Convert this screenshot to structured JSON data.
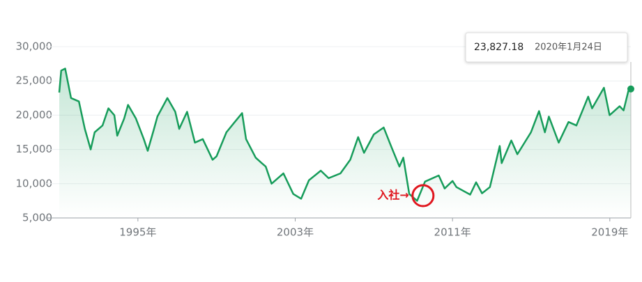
{
  "chart_data": {
    "type": "line",
    "x": [
      1991.0,
      1991.1,
      1991.3,
      1991.6,
      1992.0,
      1992.3,
      1992.6,
      1992.8,
      1993.2,
      1993.5,
      1993.8,
      1993.95,
      1994.3,
      1994.5,
      1994.9,
      1995.3,
      1995.5,
      1995.8,
      1995.99,
      1996.5,
      1996.9,
      1997.1,
      1997.5,
      1997.9,
      1998.3,
      1998.8,
      1999.0,
      1999.5,
      1999.9,
      2000.3,
      2000.5,
      2000.99,
      2001.3,
      2001.5,
      2001.8,
      2002.4,
      2002.9,
      2003.3,
      2003.7,
      2004.3,
      2004.7,
      2005.3,
      2005.8,
      2006.2,
      2006.5,
      2007.0,
      2007.5,
      2007.9,
      2008.3,
      2008.5,
      2008.8,
      2009.2,
      2009.6,
      2010.3,
      2010.6,
      2011.0,
      2011.2,
      2011.9,
      2012.2,
      2012.5,
      2012.9,
      2013.4,
      2013.5,
      2013.99,
      2014.3,
      2014.99,
      2015.4,
      2015.7,
      2015.9,
      2016.4,
      2016.9,
      2017.3,
      2017.9,
      2018.1,
      2018.7,
      2018.99,
      2019.5,
      2019.7,
      2019.95,
      2020.07
    ],
    "values": [
      23300,
      26500,
      26800,
      22500,
      22000,
      18000,
      15000,
      17500,
      18500,
      21000,
      20000,
      17000,
      19500,
      21500,
      19500,
      16500,
      14800,
      17800,
      19800,
      22500,
      20500,
      18000,
      20500,
      16000,
      16500,
      13500,
      14000,
      17500,
      18900,
      20300,
      16500,
      13800,
      13000,
      12500,
      10000,
      11500,
      8500,
      7800,
      10500,
      11900,
      10800,
      11500,
      13500,
      16800,
      14500,
      17200,
      18200,
      15300,
      12500,
      13800,
      8500,
      7500,
      10300,
      11200,
      9300,
      10400,
      9500,
      8400,
      10200,
      8600,
      9500,
      15500,
      13000,
      16300,
      14300,
      17500,
      20600,
      17500,
      19800,
      16000,
      19000,
      18500,
      22700,
      21000,
      24000,
      20000,
      21300,
      20700,
      23600,
      23827.18
    ],
    "color": "#169c5a",
    "xlim": [
      1991.0,
      2020.07
    ],
    "xticks": [
      {
        "value": 1995,
        "label": "1995年"
      },
      {
        "value": 2003,
        "label": "2003年"
      },
      {
        "value": 2011,
        "label": "2011年"
      },
      {
        "value": 2019,
        "label": "2019年"
      }
    ],
    "ylim": [
      5000,
      30000
    ],
    "yticks": [
      {
        "value": 5000,
        "label": "5,000"
      },
      {
        "value": 10000,
        "label": "10,000"
      },
      {
        "value": 15000,
        "label": "15,000"
      },
      {
        "value": 20000,
        "label": "20,000"
      },
      {
        "value": 25000,
        "label": "25,000"
      },
      {
        "value": 30000,
        "label": "30,000"
      }
    ],
    "grid": true,
    "tooltip": {
      "value": "23,827.18",
      "date": "2020年1月24日"
    },
    "annotation": {
      "text": "入社→",
      "x": 2009.5,
      "y": 8250,
      "color": "#e0161e"
    }
  }
}
